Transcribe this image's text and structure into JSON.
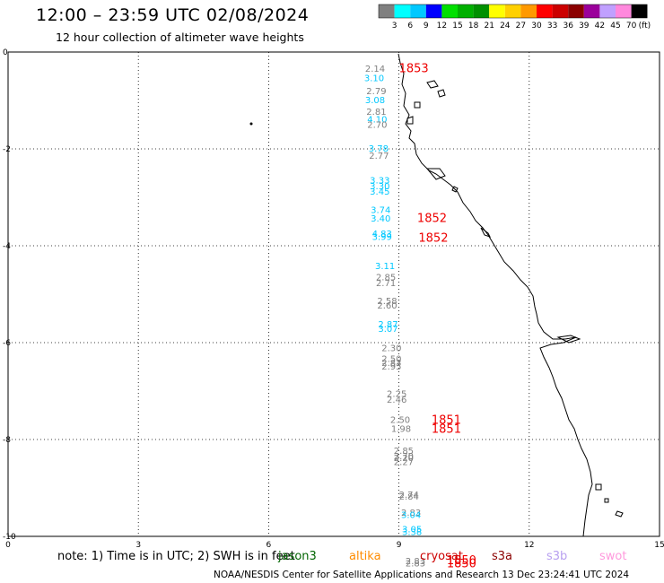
{
  "title": "12:00 – 23:59 UTC 02/08/2024",
  "subtitle": "12 hour collection of altimeter wave heights",
  "note": "note:  1) Time is in UTC; 2) SWH is in feet",
  "credit": "NOAA/NESDIS Center for Satellite Applications and Research    13 Dec 23:24:41 UTC 2024",
  "colorbar": {
    "unit": "(ft)",
    "labels": [
      "3",
      "6",
      "9",
      "12",
      "15",
      "18",
      "21",
      "24",
      "27",
      "30",
      "33",
      "36",
      "39",
      "42",
      "45",
      "70"
    ],
    "colors": [
      "#808080",
      "#00ffff",
      "#00c8ff",
      "#0000ff",
      "#00e000",
      "#00b000",
      "#009000",
      "#ffff00",
      "#ffd000",
      "#ff9900",
      "#ff0000",
      "#cc0000",
      "#8b0000",
      "#9b009b",
      "#c0a0ff",
      "#ff88dd",
      "#000000"
    ]
  },
  "axes": {
    "x_ticks": [
      "0",
      "3",
      "6",
      "9",
      "12",
      "15"
    ],
    "y_ticks": [
      "0",
      "-2",
      "-4",
      "-6",
      "-8",
      "-10"
    ],
    "xlim": [
      0,
      15
    ],
    "ylim": [
      -10,
      0
    ]
  },
  "missions": [
    {
      "name": "jason3",
      "color": "#006400"
    },
    {
      "name": "altika",
      "color": "#ff8c00"
    },
    {
      "name": "cryosat",
      "color": "#cc0000"
    },
    {
      "name": "s3a",
      "color": "#8b0000"
    },
    {
      "name": "s3b",
      "color": "#b8a0f0"
    },
    {
      "name": "swot",
      "color": "#ff99dd"
    }
  ],
  "wave_labels": [
    {
      "text": "2.14",
      "x": 8.22,
      "y": -0.33,
      "color": "#808080"
    },
    {
      "text": "3.10",
      "x": 8.2,
      "y": -0.53,
      "color": "#00c8ff"
    },
    {
      "text": "2.79",
      "x": 8.25,
      "y": -0.8,
      "color": "#808080"
    },
    {
      "text": "3.08",
      "x": 8.22,
      "y": -0.98,
      "color": "#00c8ff"
    },
    {
      "text": "2.81",
      "x": 8.25,
      "y": -1.22,
      "color": "#808080"
    },
    {
      "text": "4.10",
      "x": 8.27,
      "y": -1.38,
      "color": "#00c8ff"
    },
    {
      "text": "2.70",
      "x": 8.27,
      "y": -1.49,
      "color": "#808080"
    },
    {
      "text": "3.78",
      "x": 8.3,
      "y": -1.98,
      "color": "#00c8ff"
    },
    {
      "text": "2.77",
      "x": 8.31,
      "y": -2.13,
      "color": "#808080"
    },
    {
      "text": "3.33",
      "x": 8.33,
      "y": -2.64,
      "color": "#00c8ff"
    },
    {
      "text": "3.30",
      "x": 8.33,
      "y": -2.76,
      "color": "#00c8ff"
    },
    {
      "text": "3.45",
      "x": 8.33,
      "y": -2.87,
      "color": "#00c8ff"
    },
    {
      "text": "3.74",
      "x": 8.35,
      "y": -3.25,
      "color": "#00c8ff"
    },
    {
      "text": "3.40",
      "x": 8.35,
      "y": -3.43,
      "color": "#00c8ff"
    },
    {
      "text": "4.83",
      "x": 8.38,
      "y": -3.74,
      "color": "#00c8ff"
    },
    {
      "text": "3.99",
      "x": 8.38,
      "y": -3.81,
      "color": "#00c8ff"
    },
    {
      "text": "3.11",
      "x": 8.45,
      "y": -4.41,
      "color": "#00c8ff"
    },
    {
      "text": "2.85",
      "x": 8.47,
      "y": -4.64,
      "color": "#808080"
    },
    {
      "text": "2.71",
      "x": 8.47,
      "y": -4.76,
      "color": "#808080"
    },
    {
      "text": "2.58",
      "x": 8.5,
      "y": -5.13,
      "color": "#808080"
    },
    {
      "text": "2.60",
      "x": 8.5,
      "y": -5.22,
      "color": "#808080"
    },
    {
      "text": "2.87",
      "x": 8.52,
      "y": -5.61,
      "color": "#00c8ff"
    },
    {
      "text": "3.07",
      "x": 8.52,
      "y": -5.7,
      "color": "#00c8ff"
    },
    {
      "text": "2.30",
      "x": 8.6,
      "y": -6.1,
      "color": "#808080"
    },
    {
      "text": "2.50",
      "x": 8.6,
      "y": -6.32,
      "color": "#808080"
    },
    {
      "text": "2.83",
      "x": 8.6,
      "y": -6.41,
      "color": "#808080"
    },
    {
      "text": "2.95",
      "x": 8.6,
      "y": -6.48,
      "color": "#808080"
    },
    {
      "text": "2.25",
      "x": 8.72,
      "y": -7.05,
      "color": "#808080"
    },
    {
      "text": "2.46",
      "x": 8.72,
      "y": -7.17,
      "color": "#808080"
    },
    {
      "text": "2.50",
      "x": 8.8,
      "y": -7.58,
      "color": "#808080"
    },
    {
      "text": "1.98",
      "x": 8.82,
      "y": -7.77,
      "color": "#808080"
    },
    {
      "text": "2.85",
      "x": 8.88,
      "y": -8.22,
      "color": "#808080"
    },
    {
      "text": "2.70",
      "x": 8.88,
      "y": -8.33,
      "color": "#808080"
    },
    {
      "text": "2.20",
      "x": 8.88,
      "y": -8.37,
      "color": "#808080"
    },
    {
      "text": "2.27",
      "x": 8.88,
      "y": -8.45,
      "color": "#808080"
    },
    {
      "text": "2.74",
      "x": 9.0,
      "y": -9.13,
      "color": "#808080"
    },
    {
      "text": "2.84",
      "x": 9.0,
      "y": -9.17,
      "color": "#808080"
    },
    {
      "text": "2.83",
      "x": 9.05,
      "y": -9.5,
      "color": "#808080"
    },
    {
      "text": "3.04",
      "x": 9.05,
      "y": -9.55,
      "color": "#00c8ff"
    },
    {
      "text": "3.05",
      "x": 9.07,
      "y": -9.84,
      "color": "#00c8ff"
    },
    {
      "text": "3.38",
      "x": 9.07,
      "y": -9.9,
      "color": "#00c8ff"
    },
    {
      "text": "2.83",
      "x": 9.15,
      "y": -10.5,
      "color": "#808080"
    },
    {
      "text": "2.83",
      "x": 9.15,
      "y": -10.55,
      "color": "#808080"
    }
  ],
  "time_labels": [
    {
      "text": "1853",
      "x": 9.0,
      "y": -0.32,
      "color": "#ee0000"
    },
    {
      "text": "1852",
      "x": 9.42,
      "y": -3.42,
      "color": "#ee0000"
    },
    {
      "text": "1852",
      "x": 9.45,
      "y": -3.82,
      "color": "#ee0000"
    },
    {
      "text": "1851",
      "x": 9.75,
      "y": -7.58,
      "color": "#ee0000"
    },
    {
      "text": "1851",
      "x": 9.75,
      "y": -7.77,
      "color": "#ee0000"
    },
    {
      "text": "1850",
      "x": 10.1,
      "y": -10.48,
      "color": "#ee0000"
    },
    {
      "text": "1850",
      "x": 10.1,
      "y": -10.55,
      "color": "#ee0000"
    }
  ]
}
